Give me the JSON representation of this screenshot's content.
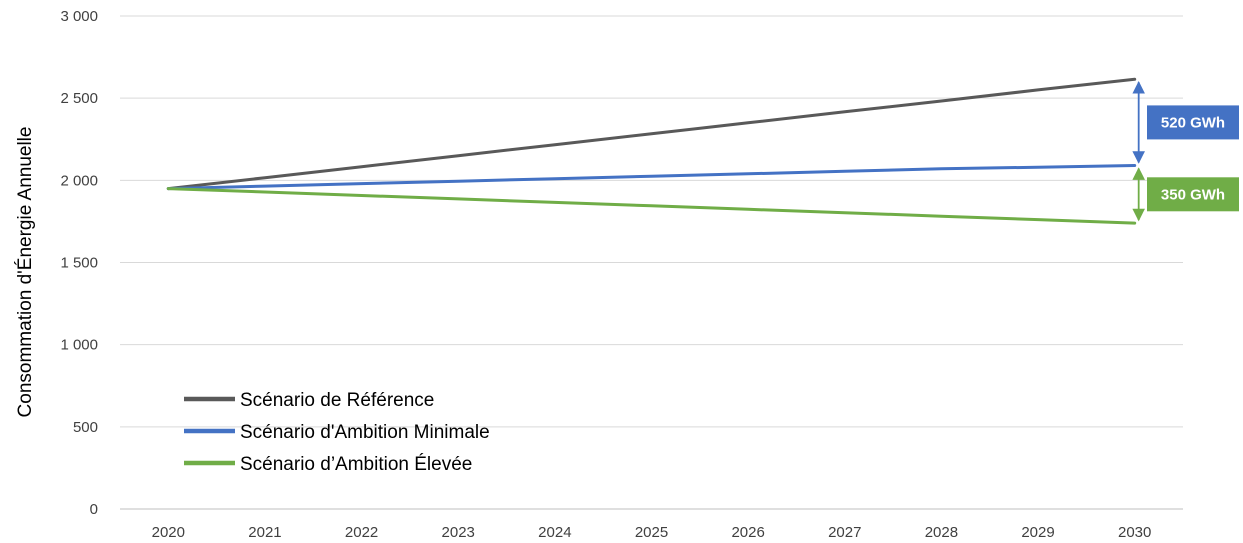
{
  "chart_data": {
    "type": "line",
    "title": "",
    "xlabel": "",
    "ylabel": "Consommation d'Énergie Annuelle",
    "x": [
      "2020",
      "2021",
      "2022",
      "2023",
      "2024",
      "2025",
      "2026",
      "2027",
      "2028",
      "2029",
      "2030"
    ],
    "ylim": [
      0,
      3000
    ],
    "yticks": [
      0,
      500,
      1000,
      1500,
      2000,
      2500,
      3000
    ],
    "ytick_labels": [
      "0",
      "500",
      "1 000",
      "1 500",
      "2 000",
      "2 500",
      "3 000"
    ],
    "grid": true,
    "legend_position": "bottom-left",
    "series": [
      {
        "name": "Scénario de Référence",
        "color": "#595959",
        "values": [
          1950,
          2016,
          2083,
          2150,
          2217,
          2283,
          2350,
          2417,
          2483,
          2550,
          2615
        ]
      },
      {
        "name": "Scénario d'Ambition Minimale",
        "color": "#4472c4",
        "values": [
          1950,
          1965,
          1980,
          1995,
          2010,
          2025,
          2040,
          2055,
          2070,
          2080,
          2090
        ]
      },
      {
        "name": "Scénario d’Ambition Élevée",
        "color": "#70ad47",
        "values": [
          1950,
          1929,
          1908,
          1887,
          1866,
          1845,
          1824,
          1803,
          1782,
          1761,
          1740
        ]
      }
    ],
    "annotations": [
      {
        "text": "520 GWh",
        "color": "#4472c4",
        "x": "2030",
        "from": 2615,
        "to": 2090
      },
      {
        "text": "350 GWh",
        "color": "#70ad47",
        "x": "2030",
        "from": 2090,
        "to": 1740
      }
    ]
  }
}
